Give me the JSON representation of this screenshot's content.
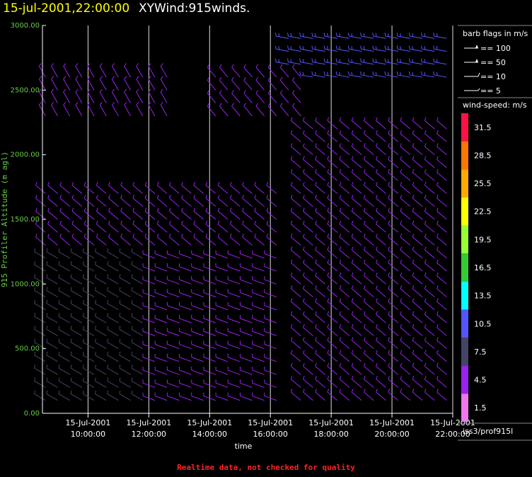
{
  "header": {
    "date_time": "15-jul-2001,22:00:00",
    "product": "XYWind:915winds."
  },
  "footer": {
    "notice": "Realtime data, not checked for quality",
    "station_id": "iss3/prof915l"
  },
  "legend": {
    "barb_title": "barb flags in m/s",
    "barbs": [
      {
        "label": "== 100",
        "value": 100
      },
      {
        "label": "== 50",
        "value": 50
      },
      {
        "label": "== 10",
        "value": 10
      },
      {
        "label": "== 5",
        "value": 5
      }
    ],
    "speed_title": "wind-speed: m/s",
    "speed_bins": [
      {
        "label": "31.5",
        "color": "#ff1144"
      },
      {
        "label": "28.5",
        "color": "#ff7700"
      },
      {
        "label": "25.5",
        "color": "#ffaa00"
      },
      {
        "label": "22.5",
        "color": "#ffff00"
      },
      {
        "label": "19.5",
        "color": "#99ff33"
      },
      {
        "label": "16.5",
        "color": "#33cc33"
      },
      {
        "label": "13.5",
        "color": "#00ffff"
      },
      {
        "label": "10.5",
        "color": "#5555ff"
      },
      {
        "label": "7.5",
        "color": "#444466"
      },
      {
        "label": "4.5",
        "color": "#9922ee"
      },
      {
        "label": "1.5",
        "color": "#ee77ee"
      }
    ]
  },
  "chart_data": {
    "type": "wind-barb time-height",
    "ylabel": "915 Profiler Altitude (m agl)",
    "xlabel": "time",
    "ylim": [
      0,
      3000
    ],
    "yticks": [
      "0.00",
      "500.00",
      "1000.00",
      "1500.00",
      "2000.00",
      "2500.00",
      "3000.00"
    ],
    "xlim_hours": [
      8.5,
      22.0
    ],
    "xticks": [
      {
        "hour": 10,
        "date": "15-Jul-2001",
        "time": "10:00:00"
      },
      {
        "hour": 12,
        "date": "15-Jul-2001",
        "time": "12:00:00"
      },
      {
        "hour": 14,
        "date": "15-Jul-2001",
        "time": "14:00:00"
      },
      {
        "hour": 16,
        "date": "15-Jul-2001",
        "time": "16:00:00"
      },
      {
        "hour": 18,
        "date": "15-Jul-2001",
        "time": "18:00:00"
      },
      {
        "hour": 20,
        "date": "15-Jul-2001",
        "time": "20:00:00"
      },
      {
        "hour": 22,
        "date": "15-Jul-2001",
        "time": "22:00:00"
      }
    ],
    "grid": "vertical lines at ticks",
    "profile_hours": [
      8.6,
      9.0,
      9.4,
      9.8,
      10.2,
      10.6,
      11.0,
      11.4,
      11.8,
      12.2,
      12.6,
      13.0,
      13.4,
      13.8,
      14.2,
      14.6,
      15.0,
      15.4,
      15.8,
      16.2,
      16.6,
      17.0,
      17.4,
      17.8,
      18.2,
      18.6,
      19.0,
      19.4,
      19.8,
      20.2,
      20.6,
      21.0,
      21.4,
      21.8
    ],
    "levels_m": [
      100,
      200,
      300,
      400,
      500,
      600,
      700,
      800,
      900,
      1000,
      1100,
      1200,
      1300,
      1400,
      1500,
      1600,
      1700,
      1800,
      1900,
      2000,
      2100,
      2200,
      2300,
      2400,
      2500,
      2600,
      2700,
      2800,
      2900
    ],
    "winds": [
      {
        "hours": [
          8.6,
          11.8
        ],
        "alt": [
          100,
          1200
        ],
        "dir": 300,
        "speed": 6
      },
      {
        "hours": [
          12.2,
          16.2
        ],
        "alt": [
          100,
          1200
        ],
        "dir": 290,
        "speed": 4
      },
      {
        "hours": [
          8.6,
          16.2
        ],
        "alt": [
          1300,
          1700
        ],
        "dir": 310,
        "speed": 3
      },
      {
        "hours": [
          8.6,
          12.6
        ],
        "alt": [
          2300,
          2600
        ],
        "dir": 330,
        "speed": 3
      },
      {
        "hours": [
          14.2,
          17.0
        ],
        "alt": [
          2300,
          2600
        ],
        "dir": 320,
        "speed": 4
      },
      {
        "hours": [
          16.6,
          22.0
        ],
        "alt": [
          2600,
          2900
        ],
        "dir": 280,
        "speed": 10
      },
      {
        "hours": [
          17.0,
          22.0
        ],
        "alt": [
          100,
          2200
        ],
        "dir": 310,
        "speed": 3
      }
    ]
  }
}
